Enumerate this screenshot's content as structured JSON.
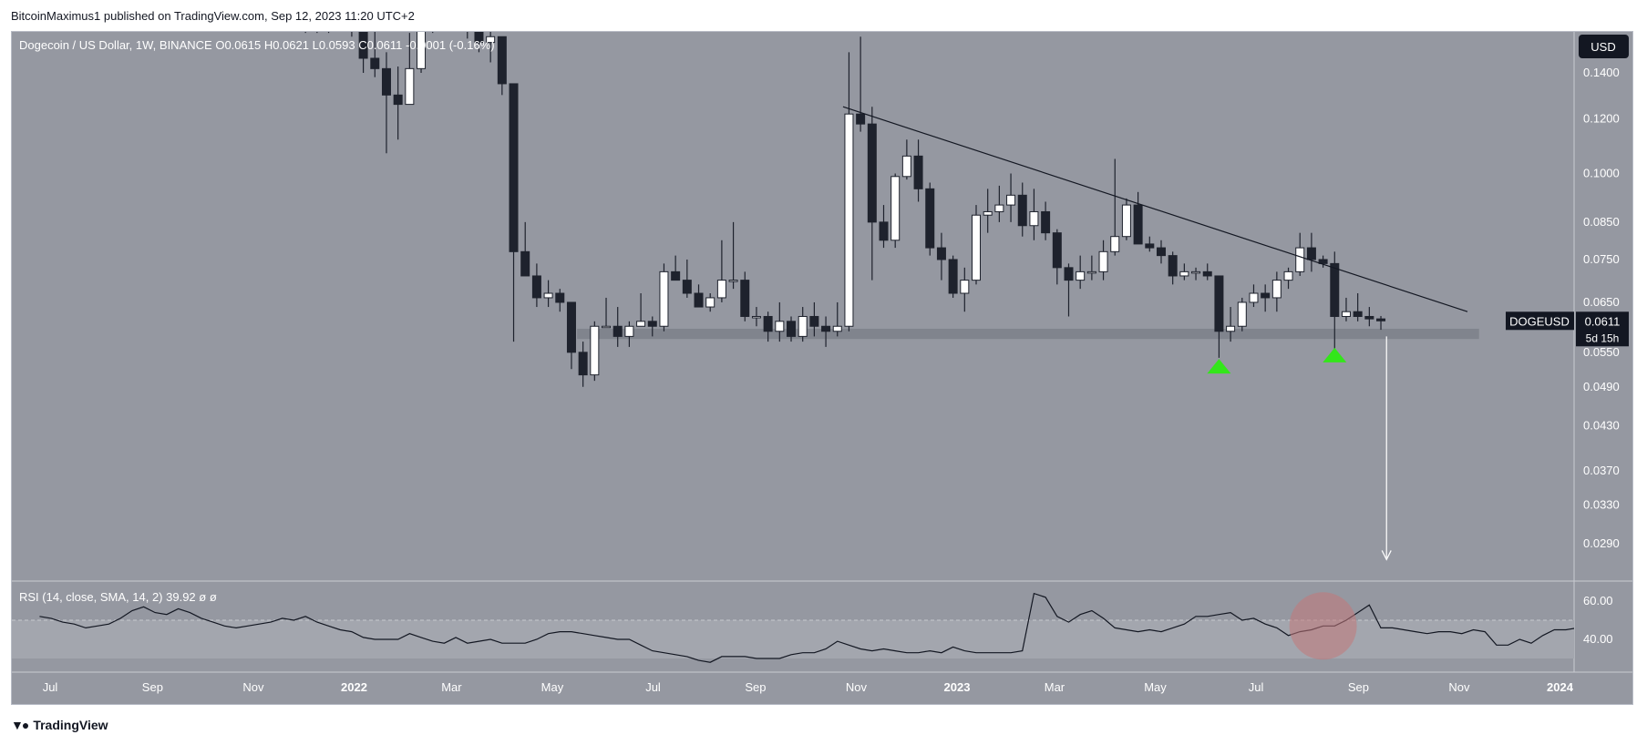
{
  "header": {
    "published": "BitcoinMaximus1 published on TradingView.com, Sep 12, 2023 11:20 UTC+2"
  },
  "footer": {
    "brand": "TradingView"
  },
  "colors": {
    "pane_bg": "#9598a1",
    "rsi_band": "#a3a6ae",
    "bull_candle": "#ffffff",
    "bear_candle": "#1e222d",
    "support_zone": "#7d8089",
    "marker": "#33e61a",
    "circle": "#c2787a"
  },
  "chart_data": [
    {
      "type": "candlestick",
      "title": "Dogecoin / US Dollar, 1W, BINANCE",
      "ohlc_legend": {
        "o_label": "O",
        "o_value": "0.0615",
        "h_label": "H",
        "h_value": "0.0621",
        "l_label": "L",
        "l_value": "0.0593",
        "c_label": "C",
        "c_value": "0.0611",
        "change": "-0.0001 (-0.16%)"
      },
      "currency_button": "USD",
      "price_tag": {
        "symbol": "DOGEUSD",
        "price": "0.0611",
        "countdown": "5d 15h"
      },
      "y_scale": "log",
      "y_ticks": [
        "0.1400",
        "0.1200",
        "0.1000",
        "0.0850",
        "0.0750",
        "0.0650",
        "0.0550",
        "0.0490",
        "0.0430",
        "0.0370",
        "0.0330",
        "0.0290"
      ],
      "y_tick_values": [
        0.14,
        0.12,
        0.1,
        0.085,
        0.075,
        0.065,
        0.055,
        0.049,
        0.043,
        0.037,
        0.033,
        0.029
      ],
      "x_ticks": [
        {
          "label": "Jul",
          "date": "2021-07-01",
          "bold": false
        },
        {
          "label": "Sep",
          "date": "2021-09-01",
          "bold": false
        },
        {
          "label": "Nov",
          "date": "2021-11-01",
          "bold": false
        },
        {
          "label": "2022",
          "date": "2022-01-01",
          "bold": true
        },
        {
          "label": "Mar",
          "date": "2022-03-01",
          "bold": false
        },
        {
          "label": "May",
          "date": "2022-05-01",
          "bold": false
        },
        {
          "label": "Jul",
          "date": "2022-07-01",
          "bold": false
        },
        {
          "label": "Sep",
          "date": "2022-09-01",
          "bold": false
        },
        {
          "label": "Nov",
          "date": "2022-11-01",
          "bold": false
        },
        {
          "label": "2023",
          "date": "2023-01-01",
          "bold": true
        },
        {
          "label": "Mar",
          "date": "2023-03-01",
          "bold": false
        },
        {
          "label": "May",
          "date": "2023-05-01",
          "bold": false
        },
        {
          "label": "Jul",
          "date": "2023-07-01",
          "bold": false
        },
        {
          "label": "Sep",
          "date": "2023-09-01",
          "bold": false
        },
        {
          "label": "Nov",
          "date": "2023-11-01",
          "bold": false
        },
        {
          "label": "2024",
          "date": "2024-01-01",
          "bold": true
        }
      ],
      "candles": [
        {
          "date": "2021-11-29",
          "o": 0.205,
          "h": 0.24,
          "l": 0.16,
          "c": 0.19
        },
        {
          "date": "2021-12-06",
          "o": 0.19,
          "h": 0.2,
          "l": 0.16,
          "c": 0.175
        },
        {
          "date": "2021-12-13",
          "o": 0.175,
          "h": 0.19,
          "l": 0.16,
          "c": 0.17
        },
        {
          "date": "2021-12-20",
          "o": 0.17,
          "h": 0.2,
          "l": 0.165,
          "c": 0.19
        },
        {
          "date": "2021-12-27",
          "o": 0.19,
          "h": 0.195,
          "l": 0.158,
          "c": 0.168
        },
        {
          "date": "2022-01-03",
          "o": 0.168,
          "h": 0.175,
          "l": 0.14,
          "c": 0.147
        },
        {
          "date": "2022-01-10",
          "o": 0.147,
          "h": 0.165,
          "l": 0.138,
          "c": 0.142
        },
        {
          "date": "2022-01-17",
          "o": 0.142,
          "h": 0.15,
          "l": 0.107,
          "c": 0.13
        },
        {
          "date": "2022-01-24",
          "o": 0.13,
          "h": 0.143,
          "l": 0.112,
          "c": 0.126
        },
        {
          "date": "2022-01-31",
          "o": 0.126,
          "h": 0.16,
          "l": 0.126,
          "c": 0.142
        },
        {
          "date": "2022-02-07",
          "o": 0.142,
          "h": 0.19,
          "l": 0.14,
          "c": 0.18
        },
        {
          "date": "2022-02-14",
          "o": 0.18,
          "h": 0.185,
          "l": 0.16,
          "c": 0.182
        },
        {
          "date": "2022-02-21",
          "o": 0.182,
          "h": 0.19,
          "l": 0.172,
          "c": 0.185
        },
        {
          "date": "2022-02-28",
          "o": 0.185,
          "h": 0.19,
          "l": 0.17,
          "c": 0.175
        },
        {
          "date": "2022-03-07",
          "o": 0.175,
          "h": 0.18,
          "l": 0.157,
          "c": 0.162
        },
        {
          "date": "2022-03-14",
          "o": 0.162,
          "h": 0.17,
          "l": 0.15,
          "c": 0.155
        },
        {
          "date": "2022-03-21",
          "o": 0.155,
          "h": 0.165,
          "l": 0.145,
          "c": 0.158
        },
        {
          "date": "2022-03-28",
          "o": 0.158,
          "h": 0.158,
          "l": 0.13,
          "c": 0.135
        },
        {
          "date": "2022-04-04",
          "o": 0.135,
          "h": 0.135,
          "l": 0.057,
          "c": 0.077
        },
        {
          "date": "2022-04-11",
          "o": 0.077,
          "h": 0.085,
          "l": 0.071,
          "c": 0.071
        },
        {
          "date": "2022-04-18",
          "o": 0.071,
          "h": 0.074,
          "l": 0.064,
          "c": 0.066
        },
        {
          "date": "2022-04-25",
          "o": 0.066,
          "h": 0.07,
          "l": 0.064,
          "c": 0.067
        },
        {
          "date": "2022-05-02",
          "o": 0.067,
          "h": 0.068,
          "l": 0.063,
          "c": 0.065
        },
        {
          "date": "2022-05-09",
          "o": 0.065,
          "h": 0.065,
          "l": 0.052,
          "c": 0.055
        },
        {
          "date": "2022-05-16",
          "o": 0.055,
          "h": 0.057,
          "l": 0.049,
          "c": 0.051
        },
        {
          "date": "2022-05-23",
          "o": 0.051,
          "h": 0.061,
          "l": 0.05,
          "c": 0.06
        },
        {
          "date": "2022-05-30",
          "o": 0.06,
          "h": 0.066,
          "l": 0.06,
          "c": 0.06
        },
        {
          "date": "2022-06-06",
          "o": 0.06,
          "h": 0.064,
          "l": 0.056,
          "c": 0.058
        },
        {
          "date": "2022-06-13",
          "o": 0.058,
          "h": 0.061,
          "l": 0.056,
          "c": 0.06
        },
        {
          "date": "2022-06-20",
          "o": 0.06,
          "h": 0.067,
          "l": 0.06,
          "c": 0.061
        },
        {
          "date": "2022-06-27",
          "o": 0.061,
          "h": 0.062,
          "l": 0.058,
          "c": 0.06
        },
        {
          "date": "2022-07-04",
          "o": 0.06,
          "h": 0.074,
          "l": 0.059,
          "c": 0.072
        },
        {
          "date": "2022-07-11",
          "o": 0.072,
          "h": 0.076,
          "l": 0.07,
          "c": 0.07
        },
        {
          "date": "2022-07-18",
          "o": 0.07,
          "h": 0.075,
          "l": 0.066,
          "c": 0.067
        },
        {
          "date": "2022-07-25",
          "o": 0.067,
          "h": 0.069,
          "l": 0.064,
          "c": 0.064
        },
        {
          "date": "2022-08-01",
          "o": 0.064,
          "h": 0.067,
          "l": 0.063,
          "c": 0.066
        },
        {
          "date": "2022-08-08",
          "o": 0.066,
          "h": 0.08,
          "l": 0.065,
          "c": 0.07
        },
        {
          "date": "2022-08-15",
          "o": 0.07,
          "h": 0.085,
          "l": 0.068,
          "c": 0.07
        },
        {
          "date": "2022-08-22",
          "o": 0.07,
          "h": 0.072,
          "l": 0.061,
          "c": 0.062
        },
        {
          "date": "2022-08-29",
          "o": 0.062,
          "h": 0.064,
          "l": 0.06,
          "c": 0.062
        },
        {
          "date": "2022-09-05",
          "o": 0.062,
          "h": 0.063,
          "l": 0.057,
          "c": 0.059
        },
        {
          "date": "2022-09-12",
          "o": 0.059,
          "h": 0.065,
          "l": 0.057,
          "c": 0.061
        },
        {
          "date": "2022-09-19",
          "o": 0.061,
          "h": 0.062,
          "l": 0.057,
          "c": 0.058
        },
        {
          "date": "2022-09-26",
          "o": 0.058,
          "h": 0.064,
          "l": 0.057,
          "c": 0.062
        },
        {
          "date": "2022-10-03",
          "o": 0.062,
          "h": 0.065,
          "l": 0.058,
          "c": 0.06
        },
        {
          "date": "2022-10-10",
          "o": 0.06,
          "h": 0.062,
          "l": 0.056,
          "c": 0.059
        },
        {
          "date": "2022-10-17",
          "o": 0.059,
          "h": 0.065,
          "l": 0.058,
          "c": 0.06
        },
        {
          "date": "2022-10-24",
          "o": 0.06,
          "h": 0.15,
          "l": 0.059,
          "c": 0.122
        },
        {
          "date": "2022-10-31",
          "o": 0.122,
          "h": 0.158,
          "l": 0.115,
          "c": 0.118
        },
        {
          "date": "2022-11-07",
          "o": 0.118,
          "h": 0.125,
          "l": 0.07,
          "c": 0.085
        },
        {
          "date": "2022-11-14",
          "o": 0.085,
          "h": 0.09,
          "l": 0.078,
          "c": 0.08
        },
        {
          "date": "2022-11-21",
          "o": 0.08,
          "h": 0.1,
          "l": 0.078,
          "c": 0.099
        },
        {
          "date": "2022-11-28",
          "o": 0.099,
          "h": 0.112,
          "l": 0.098,
          "c": 0.106
        },
        {
          "date": "2022-12-05",
          "o": 0.106,
          "h": 0.112,
          "l": 0.091,
          "c": 0.095
        },
        {
          "date": "2022-12-12",
          "o": 0.095,
          "h": 0.097,
          "l": 0.076,
          "c": 0.078
        },
        {
          "date": "2022-12-19",
          "o": 0.078,
          "h": 0.082,
          "l": 0.07,
          "c": 0.075
        },
        {
          "date": "2022-12-26",
          "o": 0.075,
          "h": 0.076,
          "l": 0.066,
          "c": 0.067
        },
        {
          "date": "2023-01-02",
          "o": 0.067,
          "h": 0.073,
          "l": 0.063,
          "c": 0.07
        },
        {
          "date": "2023-01-09",
          "o": 0.07,
          "h": 0.09,
          "l": 0.069,
          "c": 0.087
        },
        {
          "date": "2023-01-16",
          "o": 0.087,
          "h": 0.095,
          "l": 0.082,
          "c": 0.088
        },
        {
          "date": "2023-01-23",
          "o": 0.088,
          "h": 0.096,
          "l": 0.085,
          "c": 0.09
        },
        {
          "date": "2023-01-30",
          "o": 0.09,
          "h": 0.1,
          "l": 0.085,
          "c": 0.093
        },
        {
          "date": "2023-02-06",
          "o": 0.093,
          "h": 0.097,
          "l": 0.081,
          "c": 0.084
        },
        {
          "date": "2023-02-13",
          "o": 0.084,
          "h": 0.095,
          "l": 0.08,
          "c": 0.088
        },
        {
          "date": "2023-02-20",
          "o": 0.088,
          "h": 0.091,
          "l": 0.08,
          "c": 0.082
        },
        {
          "date": "2023-02-27",
          "o": 0.082,
          "h": 0.083,
          "l": 0.069,
          "c": 0.073
        },
        {
          "date": "2023-03-06",
          "o": 0.073,
          "h": 0.074,
          "l": 0.062,
          "c": 0.07
        },
        {
          "date": "2023-03-13",
          "o": 0.07,
          "h": 0.076,
          "l": 0.068,
          "c": 0.072
        },
        {
          "date": "2023-03-20",
          "o": 0.072,
          "h": 0.076,
          "l": 0.07,
          "c": 0.072
        },
        {
          "date": "2023-03-27",
          "o": 0.072,
          "h": 0.08,
          "l": 0.07,
          "c": 0.077
        },
        {
          "date": "2023-04-03",
          "o": 0.077,
          "h": 0.105,
          "l": 0.076,
          "c": 0.081
        },
        {
          "date": "2023-04-10",
          "o": 0.081,
          "h": 0.092,
          "l": 0.08,
          "c": 0.09
        },
        {
          "date": "2023-04-17",
          "o": 0.09,
          "h": 0.094,
          "l": 0.079,
          "c": 0.079
        },
        {
          "date": "2023-04-24",
          "o": 0.079,
          "h": 0.081,
          "l": 0.077,
          "c": 0.078
        },
        {
          "date": "2023-05-01",
          "o": 0.078,
          "h": 0.08,
          "l": 0.074,
          "c": 0.076
        },
        {
          "date": "2023-05-08",
          "o": 0.076,
          "h": 0.077,
          "l": 0.069,
          "c": 0.071
        },
        {
          "date": "2023-05-15",
          "o": 0.071,
          "h": 0.074,
          "l": 0.07,
          "c": 0.072
        },
        {
          "date": "2023-05-22",
          "o": 0.072,
          "h": 0.073,
          "l": 0.07,
          "c": 0.072
        },
        {
          "date": "2023-05-29",
          "o": 0.072,
          "h": 0.074,
          "l": 0.07,
          "c": 0.071
        },
        {
          "date": "2023-06-05",
          "o": 0.071,
          "h": 0.071,
          "l": 0.054,
          "c": 0.059
        },
        {
          "date": "2023-06-12",
          "o": 0.059,
          "h": 0.064,
          "l": 0.057,
          "c": 0.06
        },
        {
          "date": "2023-06-19",
          "o": 0.06,
          "h": 0.066,
          "l": 0.059,
          "c": 0.065
        },
        {
          "date": "2023-06-26",
          "o": 0.065,
          "h": 0.069,
          "l": 0.064,
          "c": 0.067
        },
        {
          "date": "2023-07-03",
          "o": 0.067,
          "h": 0.069,
          "l": 0.063,
          "c": 0.066
        },
        {
          "date": "2023-07-10",
          "o": 0.066,
          "h": 0.072,
          "l": 0.063,
          "c": 0.07
        },
        {
          "date": "2023-07-17",
          "o": 0.07,
          "h": 0.073,
          "l": 0.068,
          "c": 0.072
        },
        {
          "date": "2023-07-24",
          "o": 0.072,
          "h": 0.082,
          "l": 0.071,
          "c": 0.078
        },
        {
          "date": "2023-07-31",
          "o": 0.078,
          "h": 0.082,
          "l": 0.072,
          "c": 0.075
        },
        {
          "date": "2023-08-07",
          "o": 0.075,
          "h": 0.076,
          "l": 0.073,
          "c": 0.074
        },
        {
          "date": "2023-08-14",
          "o": 0.074,
          "h": 0.077,
          "l": 0.055,
          "c": 0.062
        },
        {
          "date": "2023-08-21",
          "o": 0.062,
          "h": 0.066,
          "l": 0.061,
          "c": 0.063
        },
        {
          "date": "2023-08-28",
          "o": 0.063,
          "h": 0.067,
          "l": 0.061,
          "c": 0.062
        },
        {
          "date": "2023-09-04",
          "o": 0.062,
          "h": 0.064,
          "l": 0.06,
          "c": 0.0615
        },
        {
          "date": "2023-09-11",
          "o": 0.0615,
          "h": 0.0621,
          "l": 0.0593,
          "c": 0.0611
        }
      ],
      "trendline": {
        "from": {
          "date": "2022-10-24",
          "price": 0.125
        },
        "to": {
          "date": "2023-11-06",
          "price": 0.063
        }
      },
      "support_zone": {
        "from": "2022-05-16",
        "to": "2023-11-13",
        "low": 0.0575,
        "high": 0.0595
      },
      "markers": [
        {
          "type": "triangle-up",
          "date": "2023-06-05",
          "price": 0.0525
        },
        {
          "type": "triangle-up",
          "date": "2023-08-14",
          "price": 0.0545
        }
      ],
      "target_arrow": {
        "date": "2023-09-18",
        "from_price": 0.058,
        "to_price": 0.0275
      }
    },
    {
      "type": "line",
      "title": "RSI (14, close, SMA, 14, 2)",
      "value_label": "39.92",
      "extra_labels": [
        "ø",
        "ø"
      ],
      "y_ticks": [
        "60.00",
        "40.00"
      ],
      "y_tick_values": [
        60,
        40
      ],
      "ylim": [
        25,
        70
      ],
      "band": [
        30,
        50
      ],
      "series": [
        {
          "x_start": "2021-06-21",
          "x_step_days": 7,
          "values": [
            52,
            51,
            49,
            48,
            46,
            47,
            48,
            51,
            55,
            57,
            54,
            53,
            56,
            54,
            51,
            49,
            47,
            46,
            47,
            48,
            49,
            51,
            50,
            52,
            49,
            47,
            45,
            44,
            41,
            40,
            40,
            40,
            43,
            41,
            39,
            38,
            41,
            38,
            39,
            40,
            38,
            38,
            38,
            40,
            43,
            44,
            44,
            43,
            42,
            41,
            40,
            40,
            37,
            34,
            33,
            32,
            31,
            29,
            28,
            31,
            31,
            31,
            30,
            30,
            30,
            32,
            33,
            33,
            35,
            39,
            37,
            35,
            34,
            35,
            34,
            33,
            33,
            34,
            33,
            36,
            34,
            33,
            33,
            33,
            33,
            34,
            64,
            62,
            52,
            49,
            53,
            55,
            51,
            46,
            45,
            44,
            45,
            44,
            46,
            48,
            52,
            52,
            53,
            54,
            50,
            51,
            48,
            46,
            42,
            44,
            45,
            47,
            47,
            50,
            54,
            58,
            46,
            46,
            45,
            44,
            43,
            44,
            44,
            43,
            45,
            44,
            37,
            37,
            40,
            38,
            42,
            45,
            45,
            46,
            49,
            53,
            50,
            51,
            39,
            40,
            40,
            39,
            39,
            39.92
          ]
        }
      ],
      "highlight_circle": {
        "date": "2023-08-07",
        "value": 47
      }
    }
  ]
}
